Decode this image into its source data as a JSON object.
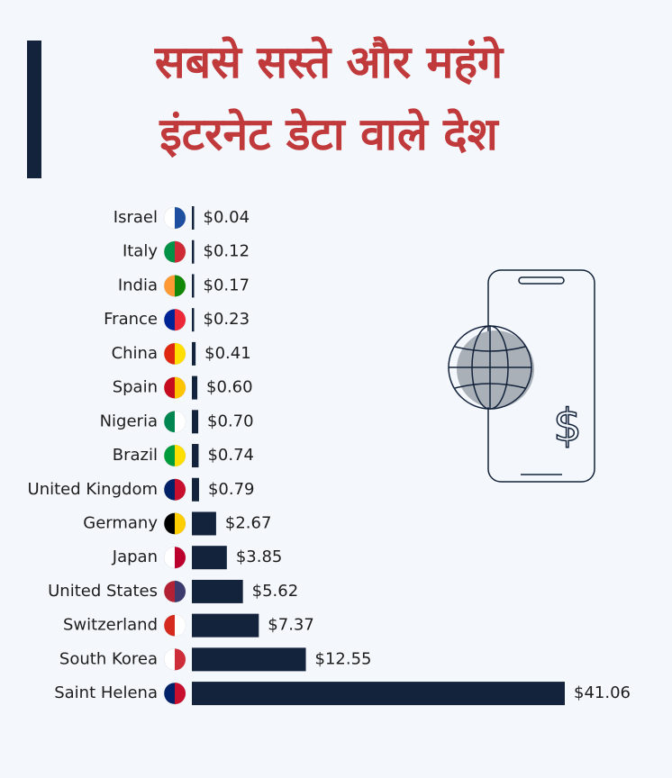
{
  "chart_data": {
    "type": "bar",
    "orientation": "horizontal",
    "title": [
      "सबसे सस्ते और महंगे",
      "इंटरनेट डेटा वाले देश"
    ],
    "categories": [
      "Israel",
      "Italy",
      "India",
      "France",
      "China",
      "Spain",
      "Nigeria",
      "Brazil",
      "United Kingdom",
      "Germany",
      "Japan",
      "United States",
      "Switzerland",
      "South Korea",
      "Saint Helena"
    ],
    "values": [
      0.04,
      0.12,
      0.17,
      0.23,
      0.41,
      0.6,
      0.7,
      0.74,
      0.79,
      2.67,
      3.85,
      5.62,
      7.37,
      12.55,
      41.06
    ],
    "value_labels": [
      "$0.04",
      "$0.12",
      "$0.17",
      "$0.23",
      "$0.41",
      "$0.60",
      "$0.70",
      "$0.74",
      "$0.79",
      "$2.67",
      "$3.85",
      "$5.62",
      "$7.37",
      "$12.55",
      "$41.06"
    ],
    "color": "#13233b",
    "xlim": [
      0,
      41.06
    ],
    "annotation": "$"
  }
}
